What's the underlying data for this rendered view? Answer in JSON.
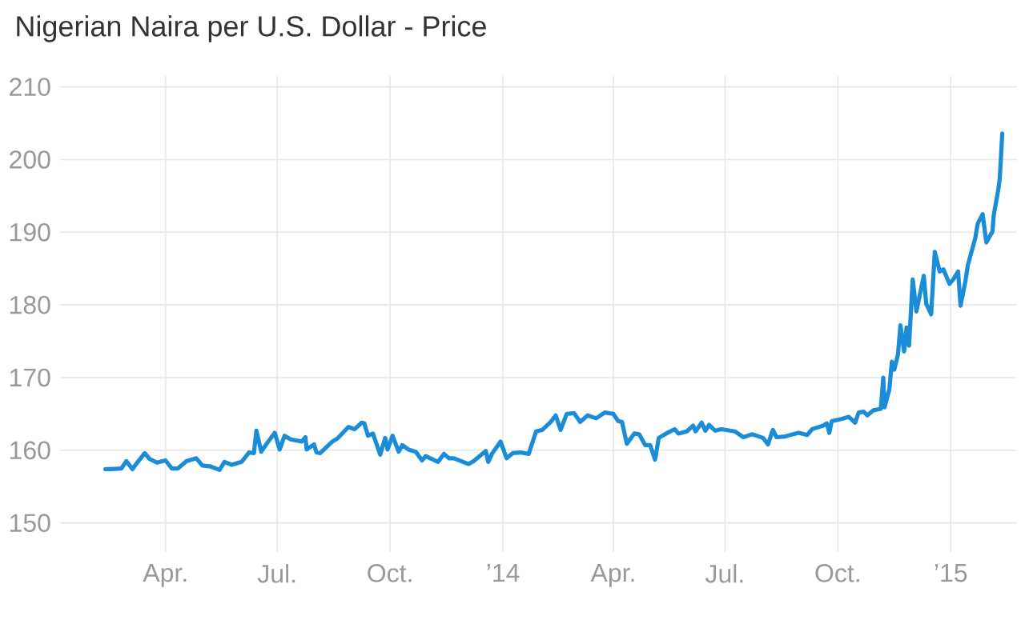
{
  "chart_data": {
    "type": "line",
    "title": "Nigerian Naira per U.S. Dollar - Price",
    "color": "#1a8cd8",
    "grid": true,
    "xlim": [
      "2013-01-05",
      "2015-02-24"
    ],
    "ylim": [
      146,
      211.5
    ],
    "xticks": [
      {
        "value": "2013-04-01",
        "label": "Apr."
      },
      {
        "value": "2013-07-01",
        "label": "Jul."
      },
      {
        "value": "2013-10-01",
        "label": "Oct."
      },
      {
        "value": "2014-01-01",
        "label": "’14"
      },
      {
        "value": "2014-04-01",
        "label": "Apr."
      },
      {
        "value": "2014-07-01",
        "label": "Jul."
      },
      {
        "value": "2014-10-01",
        "label": "Oct."
      },
      {
        "value": "2015-01-01",
        "label": "’15"
      }
    ],
    "yticks": [
      150,
      160,
      170,
      180,
      190,
      200,
      210
    ],
    "x": [
      "2013-02-11",
      "2013-02-16",
      "2013-02-24",
      "2013-02-28",
      "2013-03-05",
      "2013-03-08",
      "2013-03-15",
      "2013-03-19",
      "2013-03-25",
      "2013-04-01",
      "2013-04-06",
      "2013-04-11",
      "2013-04-18",
      "2013-04-26",
      "2013-05-01",
      "2013-05-07",
      "2013-05-15",
      "2013-05-19",
      "2013-05-25",
      "2013-06-02",
      "2013-06-08",
      "2013-06-12",
      "2013-06-14",
      "2013-06-18",
      "2013-06-22",
      "2013-06-29",
      "2013-07-03",
      "2013-07-07",
      "2013-07-12",
      "2013-07-21",
      "2013-07-24",
      "2013-07-25",
      "2013-07-31",
      "2013-08-02",
      "2013-08-05",
      "2013-08-15",
      "2013-08-19",
      "2013-08-28",
      "2013-09-02",
      "2013-09-08",
      "2013-09-10",
      "2013-09-13",
      "2013-09-17",
      "2013-09-23",
      "2013-09-27",
      "2013-09-29",
      "2013-10-03",
      "2013-10-08",
      "2013-10-11",
      "2013-10-16",
      "2013-10-22",
      "2013-10-27",
      "2013-10-30",
      "2013-11-09",
      "2013-11-14",
      "2013-11-18",
      "2013-11-22",
      "2013-12-04",
      "2013-12-08",
      "2013-12-18",
      "2013-12-20",
      "2013-12-23",
      "2013-12-30",
      "2014-01-04",
      "2014-01-09",
      "2014-01-15",
      "2014-01-22",
      "2014-01-28",
      "2014-02-02",
      "2014-02-09",
      "2014-02-13",
      "2014-02-17",
      "2014-02-22",
      "2014-02-28",
      "2014-03-05",
      "2014-03-11",
      "2014-03-18",
      "2014-03-25",
      "2014-04-01",
      "2014-04-05",
      "2014-04-08",
      "2014-04-12",
      "2014-04-18",
      "2014-04-22",
      "2014-04-27",
      "2014-05-01",
      "2014-05-05",
      "2014-05-08",
      "2014-05-14",
      "2014-05-21",
      "2014-05-24",
      "2014-05-31",
      "2014-06-05",
      "2014-06-07",
      "2014-06-12",
      "2014-06-15",
      "2014-06-18",
      "2014-06-23",
      "2014-06-28",
      "2014-07-09",
      "2014-07-16",
      "2014-07-23",
      "2014-08-01",
      "2014-08-05",
      "2014-08-09",
      "2014-08-12",
      "2014-08-19",
      "2014-08-30",
      "2014-09-06",
      "2014-09-10",
      "2014-09-19",
      "2014-09-22",
      "2014-09-24",
      "2014-09-26",
      "2014-10-04",
      "2014-10-10",
      "2014-10-15",
      "2014-10-18",
      "2014-10-22",
      "2014-10-25",
      "2014-10-30",
      "2014-11-05",
      "2014-11-07",
      "2014-11-08",
      "2014-11-12",
      "2014-11-14",
      "2014-11-16",
      "2014-11-19",
      "2014-11-21",
      "2014-11-24",
      "2014-11-26",
      "2014-11-28",
      "2014-12-01",
      "2014-12-04",
      "2014-12-10",
      "2014-12-12",
      "2014-12-16",
      "2014-12-19",
      "2014-12-23",
      "2014-12-26",
      "2014-12-31",
      "2015-01-03",
      "2015-01-07",
      "2015-01-09",
      "2015-01-13",
      "2015-01-15",
      "2015-01-21",
      "2015-01-23",
      "2015-01-27",
      "2015-01-30",
      "2015-02-04",
      "2015-02-05",
      "2015-02-09",
      "2015-02-10",
      "2015-02-12"
    ],
    "values": [
      157.4,
      157.4,
      157.5,
      158.5,
      157.4,
      158.1,
      159.6,
      158.8,
      158.3,
      158.6,
      157.5,
      157.5,
      158.5,
      158.9,
      157.9,
      157.8,
      157.3,
      158.4,
      158.0,
      158.4,
      159.7,
      159.6,
      162.7,
      159.8,
      160.8,
      162.4,
      160.1,
      162.0,
      161.5,
      161.2,
      161.8,
      160.1,
      160.8,
      159.7,
      159.6,
      161.2,
      161.6,
      163.2,
      162.9,
      163.8,
      163.7,
      162.0,
      162.3,
      159.4,
      161.7,
      160.1,
      162.0,
      159.8,
      160.7,
      160.1,
      159.8,
      158.6,
      159.2,
      158.4,
      159.5,
      158.9,
      158.9,
      158.1,
      158.5,
      159.9,
      158.4,
      159.5,
      161.2,
      158.9,
      159.6,
      159.7,
      159.5,
      162.6,
      162.8,
      163.9,
      164.8,
      162.8,
      165.0,
      165.1,
      163.9,
      164.8,
      164.4,
      165.2,
      165.0,
      164.0,
      163.9,
      160.9,
      162.3,
      162.2,
      160.7,
      160.7,
      158.7,
      161.7,
      162.3,
      162.9,
      162.3,
      162.6,
      163.4,
      162.6,
      163.8,
      162.7,
      163.5,
      162.7,
      162.9,
      162.6,
      161.8,
      162.2,
      161.7,
      160.8,
      162.8,
      161.8,
      161.9,
      162.4,
      162.1,
      162.9,
      163.4,
      163.7,
      162.4,
      164.0,
      164.3,
      164.6,
      163.8,
      165.2,
      165.3,
      164.8,
      165.5,
      165.7,
      170.0,
      165.9,
      168.4,
      172.2,
      171.1,
      173.2,
      177.2,
      173.6,
      176.9,
      174.4,
      183.5,
      179.1,
      184.0,
      180.2,
      178.7,
      187.3,
      184.6,
      184.9,
      182.9,
      183.5,
      184.6,
      179.9,
      183.3,
      185.5,
      189.2,
      191.2,
      192.5,
      188.6,
      190.1,
      192.3,
      196.1,
      197.5,
      203.6
    ]
  }
}
